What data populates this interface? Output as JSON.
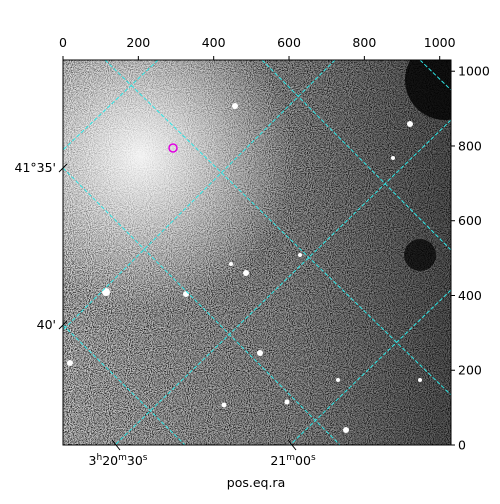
{
  "chart_data": {
    "type": "image",
    "xlabel": "pos.eq.ra",
    "xlim": [
      0,
      1030
    ],
    "xticks": [
      0,
      200,
      400,
      600,
      800,
      1000
    ],
    "ylim": [
      0,
      1030
    ],
    "yticks": [
      0,
      200,
      400,
      600,
      800,
      1000
    ],
    "ra_ticks": [
      [
        "3",
        "h",
        "20",
        "m",
        "30",
        "s"
      ],
      [
        "21",
        "m",
        "00",
        "s"
      ]
    ],
    "dec_ticks": [
      "41°35'",
      "40'"
    ]
  }
}
